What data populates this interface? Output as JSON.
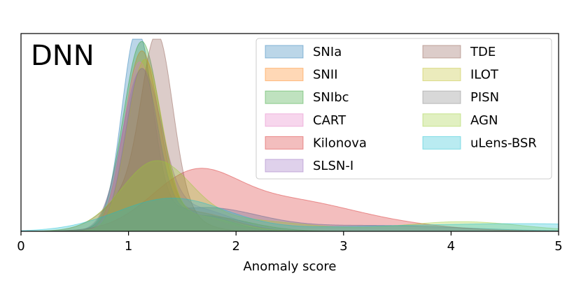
{
  "chart_data": {
    "type": "area",
    "title": "",
    "panel_label": "DNN",
    "xlabel": "Anomaly score",
    "ylabel": "",
    "xlim": [
      0,
      5
    ],
    "x_ticks": [
      0,
      1,
      2,
      3,
      4,
      5
    ],
    "grid": false,
    "legend_position": "top-right",
    "series": [
      {
        "name": "SNIa",
        "color": "#1f77b4",
        "components": [
          {
            "mu": 1.08,
            "sigma": 0.14,
            "amp": 1.0
          },
          {
            "mu": 1.7,
            "sigma": 0.5,
            "amp": 0.12
          },
          {
            "mu": 3.3,
            "sigma": 0.8,
            "amp": 0.03
          }
        ]
      },
      {
        "name": "SNII",
        "color": "#ff7f0e",
        "components": [
          {
            "mu": 1.12,
            "sigma": 0.16,
            "amp": 0.9
          },
          {
            "mu": 1.6,
            "sigma": 0.35,
            "amp": 0.1
          }
        ]
      },
      {
        "name": "SNIbc",
        "color": "#2ca02c",
        "components": [
          {
            "mu": 1.12,
            "sigma": 0.17,
            "amp": 0.96
          },
          {
            "mu": 1.7,
            "sigma": 0.4,
            "amp": 0.08
          }
        ]
      },
      {
        "name": "CART",
        "color": "#e377c2",
        "components": [
          {
            "mu": 1.1,
            "sigma": 0.15,
            "amp": 0.84
          },
          {
            "mu": 1.5,
            "sigma": 0.3,
            "amp": 0.1
          }
        ]
      },
      {
        "name": "Kilonova",
        "color": "#d62728",
        "components": [
          {
            "mu": 1.6,
            "sigma": 0.4,
            "amp": 0.28
          },
          {
            "mu": 2.45,
            "sigma": 0.55,
            "amp": 0.14
          },
          {
            "mu": 3.3,
            "sigma": 0.6,
            "amp": 0.04
          }
        ]
      },
      {
        "name": "SLSN-I",
        "color": "#9467bd",
        "components": [
          {
            "mu": 1.12,
            "sigma": 0.18,
            "amp": 0.8
          },
          {
            "mu": 1.6,
            "sigma": 0.35,
            "amp": 0.12
          }
        ]
      },
      {
        "name": "TDE",
        "color": "#8c564b",
        "components": [
          {
            "mu": 1.27,
            "sigma": 0.14,
            "amp": 0.8
          },
          {
            "mu": 1.15,
            "sigma": 0.3,
            "amp": 0.25
          }
        ]
      },
      {
        "name": "ILOT",
        "color": "#bcbd22",
        "components": [
          {
            "mu": 1.15,
            "sigma": 0.16,
            "amp": 0.86
          },
          {
            "mu": 1.6,
            "sigma": 0.35,
            "amp": 0.08
          }
        ]
      },
      {
        "name": "PISN",
        "color": "#7f7f7f",
        "components": [
          {
            "mu": 1.12,
            "sigma": 0.15,
            "amp": 0.82
          },
          {
            "mu": 1.6,
            "sigma": 0.3,
            "amp": 0.1
          }
        ]
      },
      {
        "name": "AGN",
        "color": "#9acd32",
        "components": [
          {
            "mu": 1.25,
            "sigma": 0.32,
            "amp": 0.34
          },
          {
            "mu": 2.0,
            "sigma": 0.6,
            "amp": 0.06
          },
          {
            "mu": 4.1,
            "sigma": 0.55,
            "amp": 0.05
          }
        ]
      },
      {
        "name": "uLens-BSR",
        "color": "#17becf",
        "components": [
          {
            "mu": 1.4,
            "sigma": 0.5,
            "amp": 0.17
          },
          {
            "mu": 3.5,
            "sigma": 1.0,
            "amp": 0.025
          },
          {
            "mu": 5.0,
            "sigma": 0.8,
            "amp": 0.03
          }
        ]
      }
    ]
  }
}
